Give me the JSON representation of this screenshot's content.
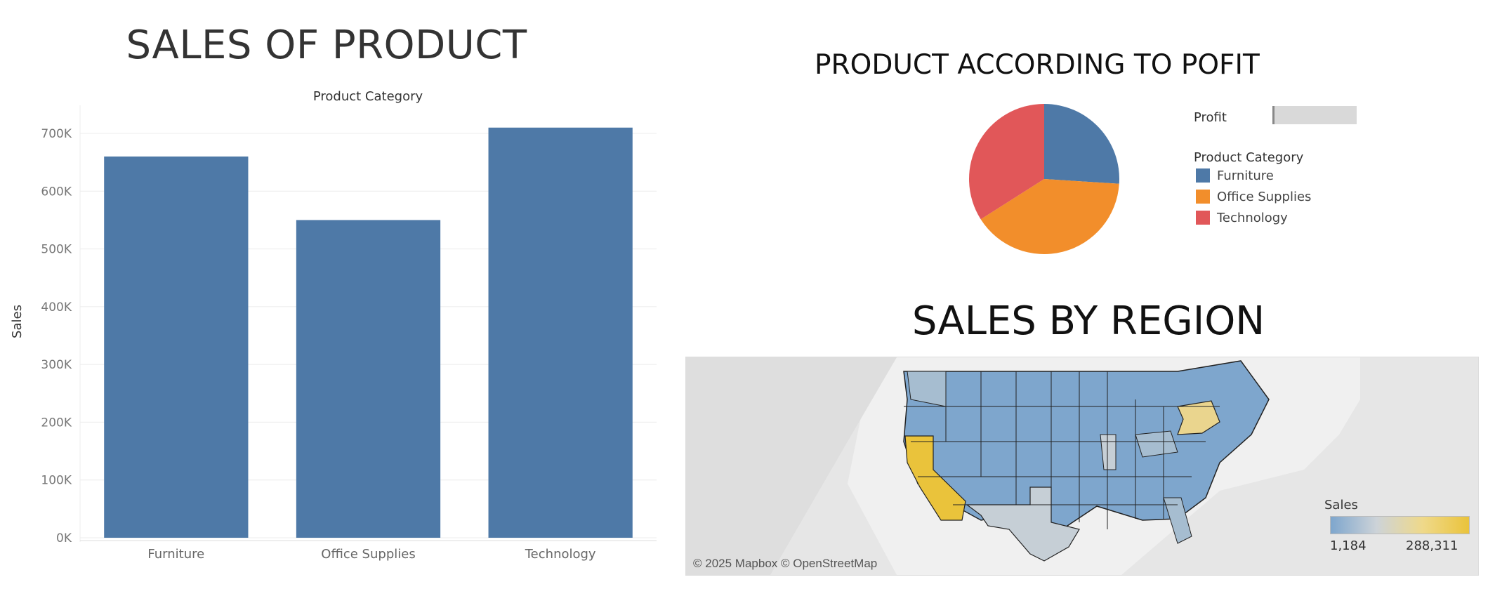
{
  "charts": {
    "bar_title": "SALES OF PRODUCT",
    "pie_title": "PRODUCT ACCORDING TO POFIT",
    "map_title": "SALES BY REGION"
  },
  "chart_data": [
    {
      "type": "bar",
      "title": "SALES OF PRODUCT",
      "header": "Product Category",
      "categories": [
        "Furniture",
        "Office Supplies",
        "Technology"
      ],
      "values": [
        660000,
        550000,
        710000
      ],
      "ylabel": "Sales",
      "ylim": [
        0,
        700000
      ],
      "yticks": [
        0,
        100000,
        200000,
        300000,
        400000,
        500000,
        600000,
        700000
      ],
      "ytick_labels": [
        "0K",
        "100K",
        "200K",
        "300K",
        "400K",
        "500K",
        "600K",
        "700K"
      ],
      "color": "#4e79a7",
      "grid": true
    },
    {
      "type": "pie",
      "title": "PRODUCT ACCORDING TO POFIT",
      "categories": [
        "Furniture",
        "Office Supplies",
        "Technology"
      ],
      "values": [
        0.26,
        0.4,
        0.34
      ],
      "colors": [
        "#4e79a7",
        "#f28e2b",
        "#e15759"
      ],
      "legend": {
        "size_title": "Profit",
        "color_title": "Product Category",
        "items": [
          "Furniture",
          "Office Supplies",
          "Technology"
        ],
        "placement": "right"
      }
    },
    {
      "type": "map",
      "title": "SALES BY REGION",
      "legend": {
        "title": "Sales",
        "min_label": "1,184",
        "max_label": "288,311",
        "placement": "bottom-right"
      },
      "credit": "© 2025 Mapbox © OpenStreetMap",
      "low_color": "#7ea6cd",
      "high_color": "#eac33b"
    }
  ]
}
